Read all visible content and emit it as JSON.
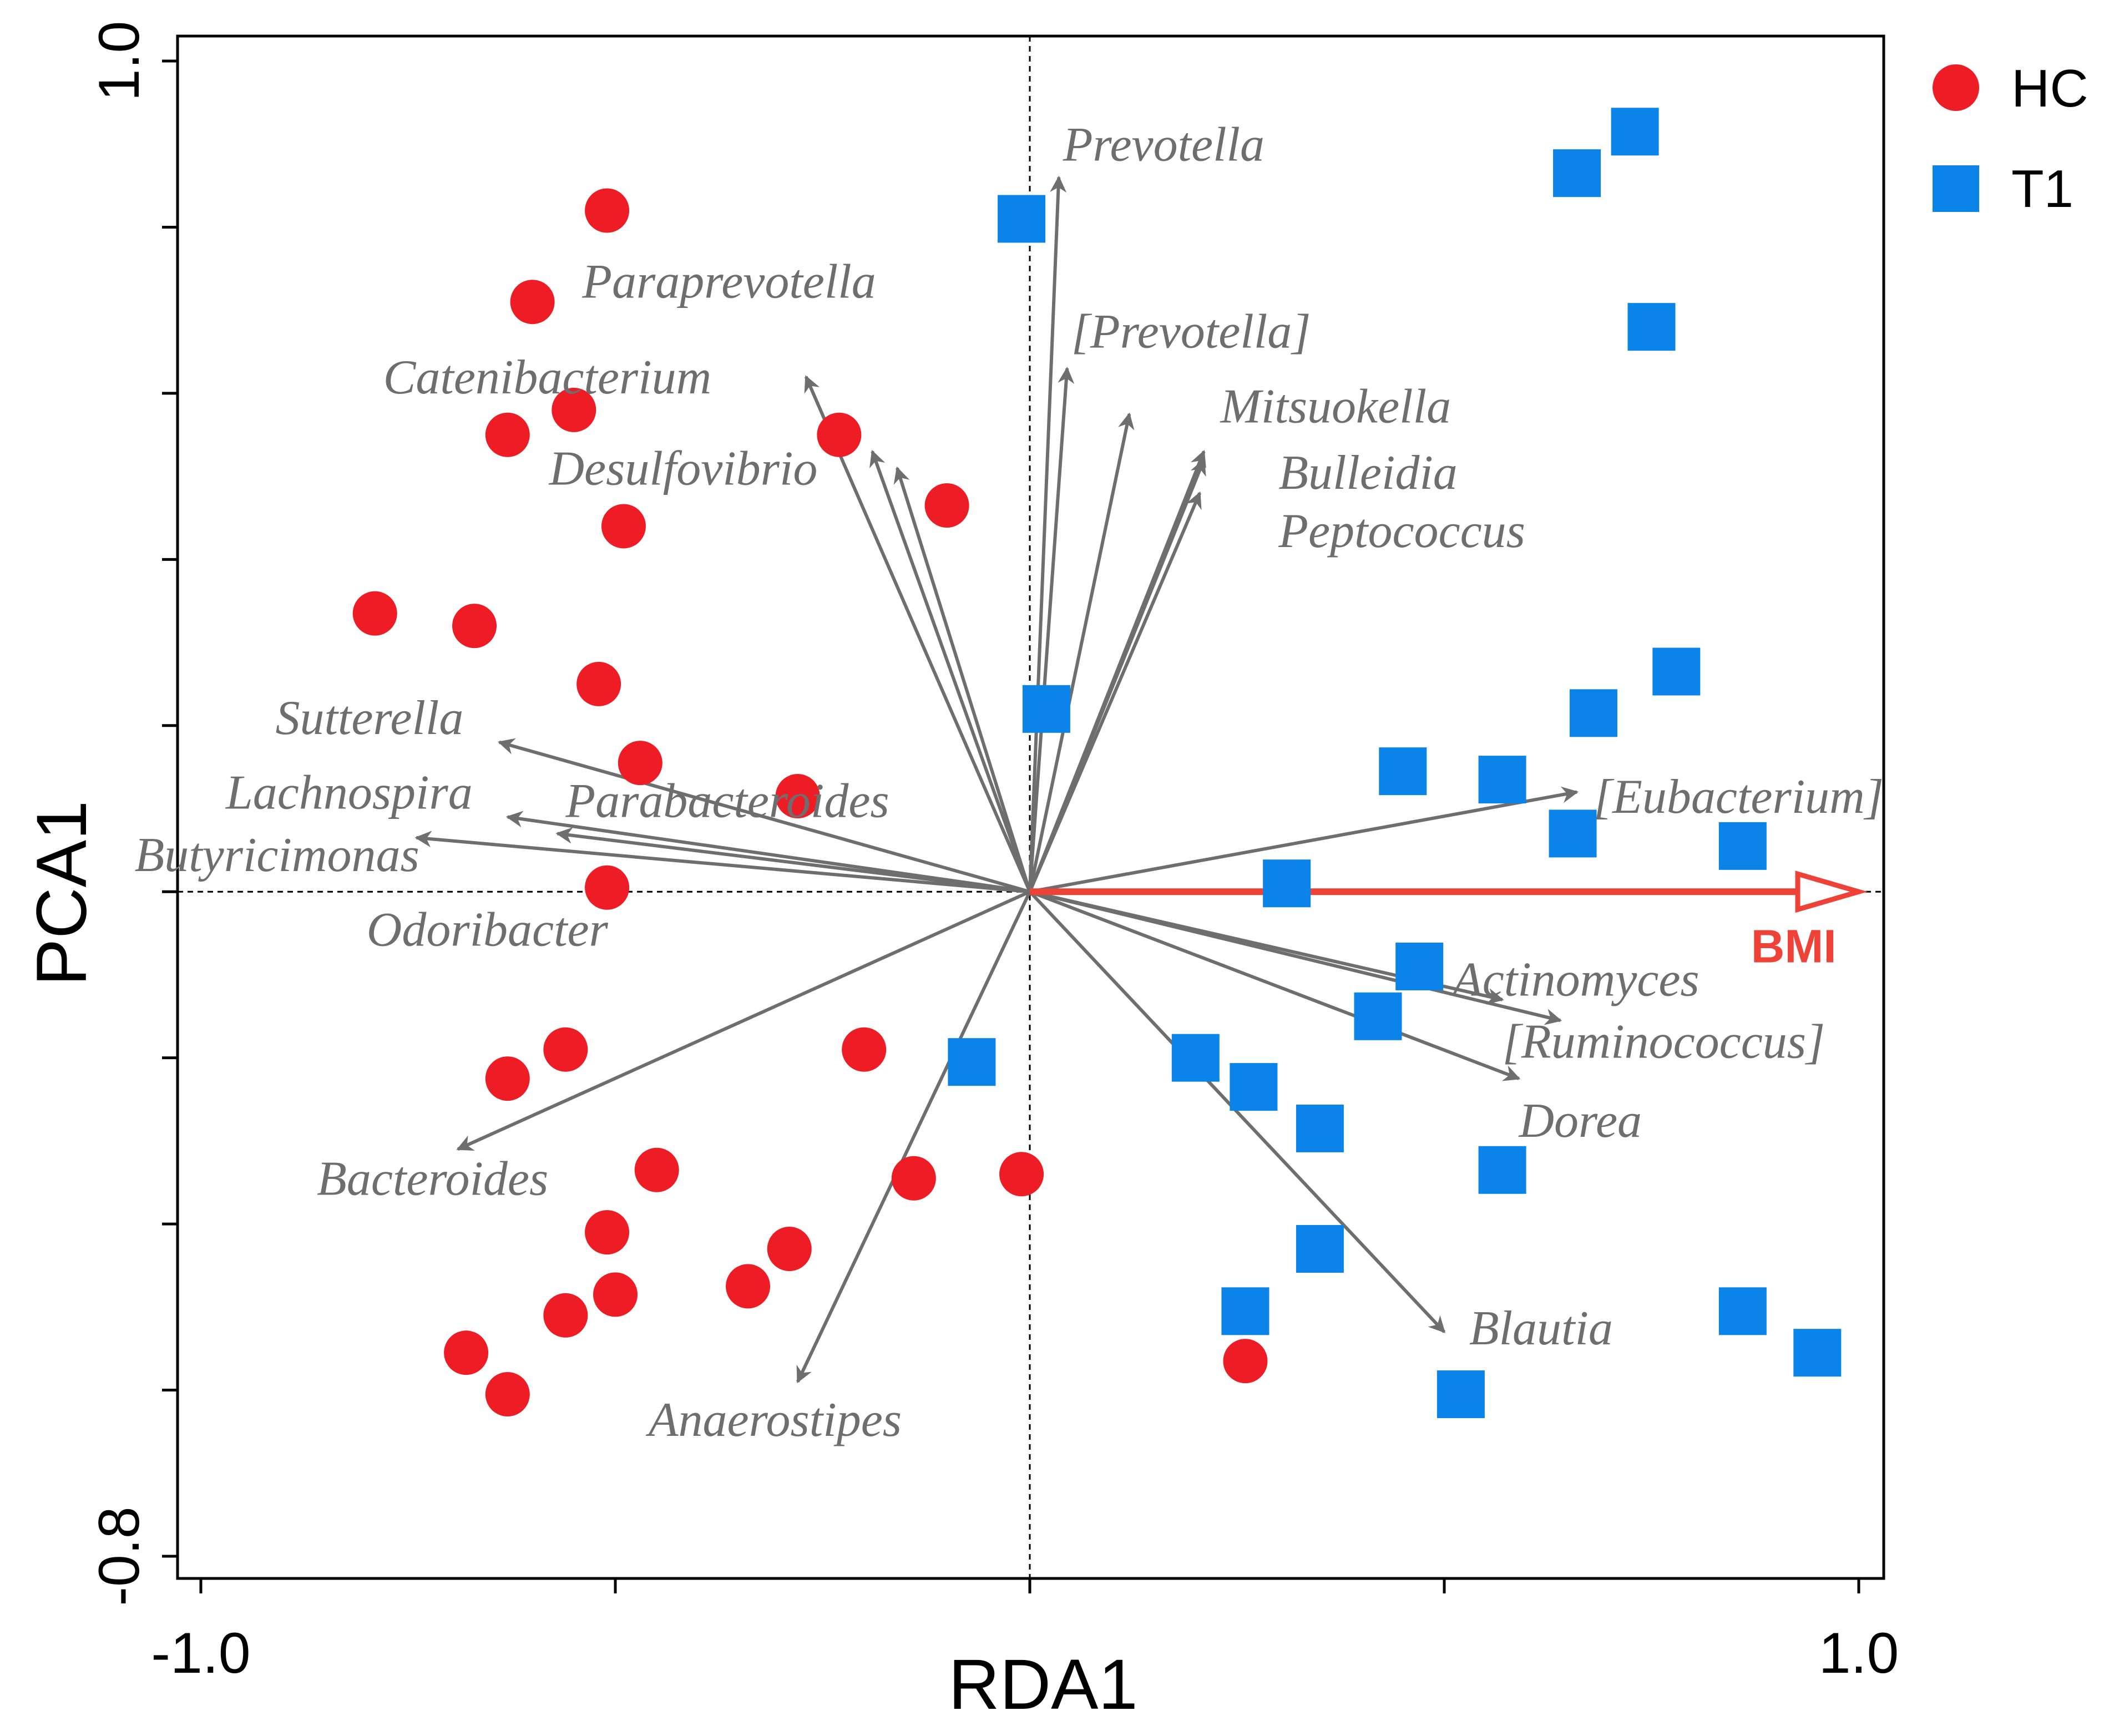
{
  "chart_data": {
    "type": "scatter",
    "subtype": "RDA triplot",
    "xlabel": "RDA1",
    "ylabel": "PCA1",
    "xlim": [
      -1.0,
      1.0
    ],
    "ylim": [
      -0.8,
      1.0
    ],
    "x_tick_labels": [
      {
        "value": -1.0,
        "label": "-1.0"
      },
      {
        "value": 1.0,
        "label": "1.0"
      }
    ],
    "y_tick_labels": [
      {
        "value": 1.0,
        "label": "1.0"
      },
      {
        "value": -0.8,
        "label": "-0.8"
      }
    ],
    "x_minor_ticks": [
      -1.0,
      -0.5,
      0.0,
      0.5,
      1.0
    ],
    "y_minor_ticks": [
      1.0,
      0.8,
      0.6,
      0.4,
      0.2,
      0.0,
      -0.2,
      -0.4,
      -0.6,
      -0.8
    ],
    "zero_lines": true,
    "legend_position": "top-right",
    "series": [
      {
        "name": "HC",
        "marker": "circle",
        "color": "#ee1c25",
        "points": [
          [
            -0.51,
            0.82
          ],
          [
            -0.6,
            0.71
          ],
          [
            -0.55,
            0.58
          ],
          [
            -0.63,
            0.55
          ],
          [
            -0.49,
            0.44
          ],
          [
            -0.23,
            0.55
          ],
          [
            -0.1,
            0.465
          ],
          [
            -0.79,
            0.335
          ],
          [
            -0.67,
            0.32
          ],
          [
            -0.52,
            0.25
          ],
          [
            -0.47,
            0.155
          ],
          [
            -0.28,
            0.115
          ],
          [
            -0.51,
            0.005
          ],
          [
            -0.56,
            -0.19
          ],
          [
            -0.63,
            -0.225
          ],
          [
            -0.2,
            -0.19
          ],
          [
            -0.45,
            -0.335
          ],
          [
            -0.14,
            -0.345
          ],
          [
            -0.01,
            -0.34
          ],
          [
            -0.51,
            -0.41
          ],
          [
            -0.29,
            -0.43
          ],
          [
            -0.5,
            -0.485
          ],
          [
            -0.34,
            -0.475
          ],
          [
            -0.56,
            -0.51
          ],
          [
            -0.68,
            -0.555
          ],
          [
            -0.63,
            -0.605
          ],
          [
            0.26,
            -0.565
          ]
        ]
      },
      {
        "name": "T1",
        "marker": "square",
        "color": "#0a84e8",
        "points": [
          [
            -0.01,
            0.81
          ],
          [
            0.66,
            0.865
          ],
          [
            0.73,
            0.915
          ],
          [
            0.75,
            0.68
          ],
          [
            0.02,
            0.22
          ],
          [
            0.78,
            0.265
          ],
          [
            0.68,
            0.215
          ],
          [
            0.45,
            0.145
          ],
          [
            0.57,
            0.135
          ],
          [
            0.655,
            0.07
          ],
          [
            0.86,
            0.055
          ],
          [
            0.31,
            0.01
          ],
          [
            0.47,
            -0.09
          ],
          [
            0.42,
            -0.15
          ],
          [
            -0.07,
            -0.205
          ],
          [
            0.2,
            -0.2
          ],
          [
            0.27,
            -0.235
          ],
          [
            0.35,
            -0.285
          ],
          [
            0.57,
            -0.335
          ],
          [
            0.35,
            -0.43
          ],
          [
            0.26,
            -0.505
          ],
          [
            0.86,
            -0.505
          ],
          [
            0.95,
            -0.555
          ],
          [
            0.52,
            -0.605
          ]
        ]
      }
    ],
    "species_arrows": [
      {
        "name": "Prevotella",
        "x": 0.035,
        "y": 0.86
      },
      {
        "name": "[Prevotella]",
        "x": 0.045,
        "y": 0.63
      },
      {
        "name": "Mitsuokella",
        "x": 0.12,
        "y": 0.575
      },
      {
        "name": "Bulleidia",
        "x": 0.21,
        "y": 0.53
      },
      {
        "name": "Peptococcus",
        "x": 0.21,
        "y": 0.52
      },
      {
        "name": "Peptococcus",
        "x": 0.205,
        "y": 0.48
      },
      {
        "name": "Paraprevotella",
        "x": -0.27,
        "y": 0.62
      },
      {
        "name": "Desulfovibrio",
        "x": -0.16,
        "y": 0.51
      },
      {
        "name": "Desulfovibrio",
        "x": -0.19,
        "y": 0.53
      },
      {
        "name": "Sutterella",
        "x": -0.64,
        "y": 0.18
      },
      {
        "name": "Lachnospira",
        "x": -0.63,
        "y": 0.09
      },
      {
        "name": "Parabacteroides",
        "x": -0.57,
        "y": 0.07
      },
      {
        "name": "Butyricimonas",
        "x": -0.74,
        "y": 0.065
      },
      {
        "name": "Bacteroides",
        "x": -0.69,
        "y": -0.31
      },
      {
        "name": "Anaerostipes",
        "x": -0.28,
        "y": -0.59
      },
      {
        "name": "[Eubacterium]",
        "x": 0.66,
        "y": 0.12
      },
      {
        "name": "Actinomyces",
        "x": 0.57,
        "y": -0.13
      },
      {
        "name": "[Ruminococcus]",
        "x": 0.64,
        "y": -0.155
      },
      {
        "name": "Dorea",
        "x": 0.59,
        "y": -0.225
      },
      {
        "name": "Blautia",
        "x": 0.5,
        "y": -0.53
      }
    ],
    "environment_arrow": {
      "name": "BMI",
      "x": 1.0,
      "y": 0.0,
      "color": "#ee4238"
    },
    "annotations": [
      {
        "text": "Prevotella",
        "x": 0.04,
        "y": 0.88
      },
      {
        "text": "Paraprevotella",
        "x": -0.54,
        "y": 0.715
      },
      {
        "text": "[Prevotella]",
        "x": 0.05,
        "y": 0.655
      },
      {
        "text": "Catenibacterium",
        "x": -0.78,
        "y": 0.6
      },
      {
        "text": "Mitsuokella",
        "x": 0.23,
        "y": 0.565
      },
      {
        "text": "Desulfovibrio",
        "x": -0.58,
        "y": 0.49
      },
      {
        "text": "Bulleidia",
        "x": 0.3,
        "y": 0.485
      },
      {
        "text": "Peptococcus",
        "x": 0.3,
        "y": 0.415
      },
      {
        "text": "Sutterella",
        "x": -0.91,
        "y": 0.19
      },
      {
        "text": "Lachnospira",
        "x": -0.97,
        "y": 0.1
      },
      {
        "text": "Parabacteroides",
        "x": -0.56,
        "y": 0.09
      },
      {
        "text": "Butyricimonas",
        "x": -1.08,
        "y": 0.025
      },
      {
        "text": "Odoribacter",
        "x": -0.8,
        "y": -0.065
      },
      {
        "text": "[Eubacterium]",
        "x": 0.68,
        "y": 0.095
      },
      {
        "text": "Actinomyces",
        "x": 0.51,
        "y": -0.125
      },
      {
        "text": "[Ruminococcus]",
        "x": 0.57,
        "y": -0.2
      },
      {
        "text": "Dorea",
        "x": 0.59,
        "y": -0.295
      },
      {
        "text": "Bacteroides",
        "x": -0.86,
        "y": -0.365
      },
      {
        "text": "Blautia",
        "x": 0.53,
        "y": -0.545
      },
      {
        "text": "Anaerostipes",
        "x": -0.46,
        "y": -0.655
      },
      {
        "text": "BMI",
        "x": 0.87,
        "y": -0.085
      }
    ]
  }
}
